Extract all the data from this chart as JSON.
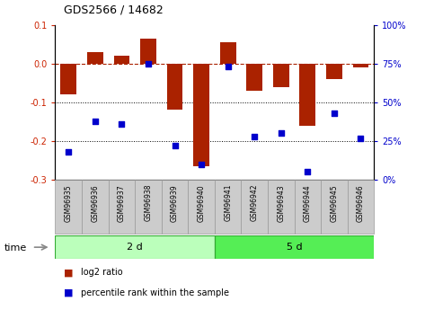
{
  "title": "GDS2566 / 14682",
  "samples": [
    "GSM96935",
    "GSM96936",
    "GSM96937",
    "GSM96938",
    "GSM96939",
    "GSM96940",
    "GSM96941",
    "GSM96942",
    "GSM96943",
    "GSM96944",
    "GSM96945",
    "GSM96946"
  ],
  "log2_ratio": [
    -0.08,
    0.03,
    0.02,
    0.065,
    -0.12,
    -0.265,
    0.055,
    -0.07,
    -0.06,
    -0.16,
    -0.04,
    -0.01
  ],
  "percentile_rank": [
    18,
    38,
    36,
    75,
    22,
    10,
    73,
    28,
    30,
    5,
    43,
    27
  ],
  "groups": [
    {
      "label": "2 d",
      "start": 0,
      "end": 6,
      "color": "#bbffbb"
    },
    {
      "label": "5 d",
      "start": 6,
      "end": 12,
      "color": "#55ee55"
    }
  ],
  "bar_color": "#aa2200",
  "dot_color": "#0000cc",
  "ylim_left": [
    -0.3,
    0.1
  ],
  "ylim_right": [
    0,
    100
  ],
  "yticks_left": [
    -0.3,
    -0.2,
    -0.1,
    0.0,
    0.1
  ],
  "yticks_right": [
    0,
    25,
    50,
    75,
    100
  ],
  "hline_y": 0.0,
  "dotted_lines": [
    -0.1,
    -0.2
  ],
  "bar_width": 0.6,
  "left_tick_color": "#cc2200",
  "right_tick_color": "#0000cc",
  "legend_bar_label": "log2 ratio",
  "legend_dot_label": "percentile rank within the sample",
  "time_label": "time",
  "sample_box_color": "#cccccc",
  "sample_box_edge": "#999999"
}
